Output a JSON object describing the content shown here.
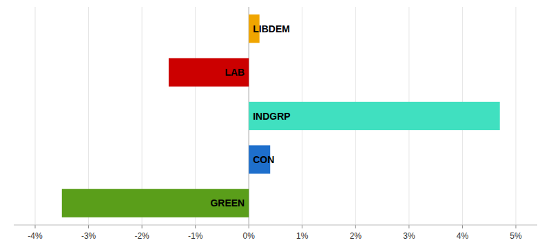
{
  "chart_data": {
    "type": "bar",
    "orientation": "horizontal",
    "categories": [
      "GREEN",
      "CON",
      "INDGRP",
      "LAB",
      "LIBDEM"
    ],
    "values": [
      -3.5,
      0.4,
      4.7,
      -1.5,
      0.2
    ],
    "colors": [
      "#5A9E1A",
      "#1E6FCC",
      "#40E0C0",
      "#CC0000",
      "#F0A500"
    ],
    "xlim": [
      -4.4,
      5.4
    ],
    "xticks": [
      {
        "value": -4,
        "label": "-4%"
      },
      {
        "value": -3,
        "label": "-3%"
      },
      {
        "value": -2,
        "label": "-2%"
      },
      {
        "value": -1,
        "label": "-1%"
      },
      {
        "value": 0,
        "label": "0%"
      },
      {
        "value": 1,
        "label": "1%"
      },
      {
        "value": 2,
        "label": "2%"
      },
      {
        "value": 3,
        "label": "3%"
      },
      {
        "value": 4,
        "label": "4%"
      },
      {
        "value": 5,
        "label": "5%"
      }
    ],
    "grid": true
  }
}
